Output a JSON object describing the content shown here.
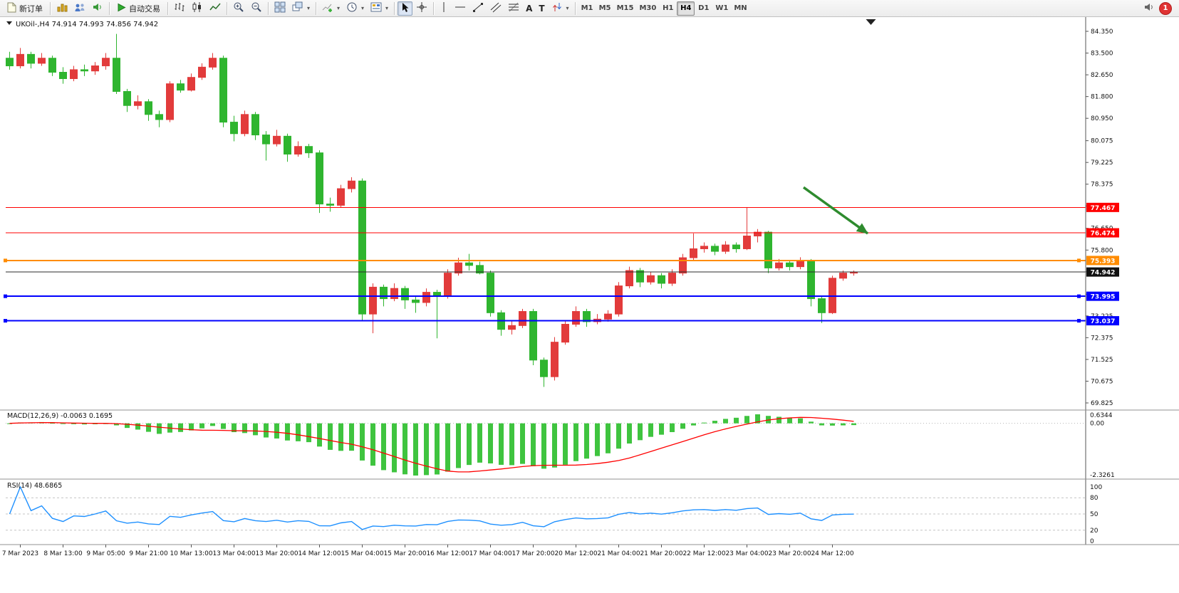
{
  "toolbar": {
    "new_order_label": "新订单",
    "autotrading_label": "自动交易",
    "timeframes": [
      "M1",
      "M5",
      "M15",
      "M30",
      "H1",
      "H4",
      "D1",
      "W1",
      "MN"
    ],
    "active_timeframe": "H4",
    "notification_badge": "1"
  },
  "icons": {
    "dropdown": "▾",
    "text_tool": "A",
    "label_tool": "T"
  },
  "chart": {
    "symbol": "UKOil-,H4",
    "ohlc": {
      "open": "74.914",
      "high": "74.993",
      "low": "74.856",
      "close": "74.942"
    },
    "price_ticks": [
      "84.350",
      "83.500",
      "82.650",
      "81.800",
      "80.950",
      "80.075",
      "79.225",
      "78.375",
      "77.525",
      "76.650",
      "75.800",
      "74.950",
      "74.075",
      "73.225",
      "72.375",
      "71.525",
      "70.675",
      "69.825"
    ],
    "hlines": [
      {
        "price": 77.467,
        "label": "77.467",
        "color": "#FF0000",
        "width": 1,
        "handles": false
      },
      {
        "price": 76.474,
        "label": "76.474",
        "color": "#FF0000",
        "width": 1,
        "handles": false
      },
      {
        "price": 75.393,
        "label": "75.393",
        "color": "#FF8C00",
        "width": 2,
        "handles": true
      },
      {
        "price": 73.995,
        "label": "73.995",
        "color": "#0000FF",
        "width": 2,
        "handles": true
      },
      {
        "price": 73.037,
        "label": "73.037",
        "color": "#0000FF",
        "width": 2,
        "handles": true
      }
    ],
    "current_price": {
      "value": 74.942,
      "label": "74.942",
      "line_color": "#2B2B2B",
      "tag_color": "#111111"
    },
    "arrow_annotation": {
      "color": "#2E8B2E",
      "start": {
        "bar": 74.3,
        "price": 78.25
      },
      "end": {
        "bar": 80.3,
        "price": 76.45
      }
    },
    "shift_marker_bar": 80.6
  },
  "chart_data": {
    "type": "candlestick",
    "title": "UKOil-,H4",
    "timeframe": "H4",
    "y_range": [
      69.825,
      84.35
    ],
    "bull_color": "#E23B3B",
    "bear_color": "#2FB52F",
    "x_labels": [
      "7 Mar 2023",
      "8 Mar 13:00",
      "9 Mar 05:00",
      "9 Mar 21:00",
      "10 Mar 13:00",
      "13 Mar 04:00",
      "13 Mar 20:00",
      "14 Mar 12:00",
      "15 Mar 04:00",
      "15 Mar 20:00",
      "16 Mar 12:00",
      "17 Mar 04:00",
      "17 Mar 20:00",
      "20 Mar 12:00",
      "21 Mar 04:00",
      "21 Mar 20:00",
      "22 Mar 12:00",
      "23 Mar 04:00",
      "23 Mar 20:00",
      "24 Mar 12:00"
    ],
    "x_label_indices": [
      1,
      5,
      9,
      13,
      17,
      21,
      25,
      29,
      33,
      37,
      41,
      45,
      49,
      53,
      57,
      61,
      65,
      69,
      73,
      77
    ],
    "candles": [
      [
        83.3,
        83.55,
        82.85,
        83.0
      ],
      [
        83.0,
        83.7,
        82.9,
        83.45
      ],
      [
        83.45,
        83.55,
        82.9,
        83.1
      ],
      [
        83.1,
        83.5,
        83.0,
        83.3
      ],
      [
        83.3,
        83.4,
        82.6,
        82.75
      ],
      [
        82.75,
        82.95,
        82.3,
        82.5
      ],
      [
        82.5,
        83.0,
        82.4,
        82.85
      ],
      [
        82.85,
        83.05,
        82.6,
        82.8
      ],
      [
        82.8,
        83.15,
        82.65,
        83.0
      ],
      [
        83.0,
        83.5,
        82.85,
        83.3
      ],
      [
        83.3,
        84.25,
        81.9,
        82.0
      ],
      [
        82.0,
        82.1,
        81.2,
        81.45
      ],
      [
        81.45,
        81.85,
        81.3,
        81.6
      ],
      [
        81.6,
        81.7,
        80.85,
        81.1
      ],
      [
        81.1,
        81.25,
        80.6,
        80.9
      ],
      [
        80.9,
        82.4,
        80.8,
        82.3
      ],
      [
        82.3,
        82.45,
        81.95,
        82.05
      ],
      [
        82.05,
        82.7,
        82.0,
        82.55
      ],
      [
        82.55,
        83.1,
        82.45,
        82.95
      ],
      [
        82.95,
        83.5,
        82.85,
        83.3
      ],
      [
        83.3,
        83.4,
        80.6,
        80.8
      ],
      [
        80.8,
        81.05,
        80.05,
        80.35
      ],
      [
        80.35,
        81.25,
        80.25,
        81.1
      ],
      [
        81.1,
        81.2,
        80.1,
        80.3
      ],
      [
        80.3,
        80.45,
        79.3,
        79.95
      ],
      [
        79.95,
        80.5,
        79.85,
        80.25
      ],
      [
        80.25,
        80.35,
        79.25,
        79.55
      ],
      [
        79.55,
        80.05,
        79.45,
        79.85
      ],
      [
        79.85,
        79.95,
        79.4,
        79.6
      ],
      [
        79.6,
        79.7,
        77.25,
        77.6
      ],
      [
        77.6,
        77.85,
        77.3,
        77.55
      ],
      [
        77.55,
        78.35,
        77.45,
        78.2
      ],
      [
        78.2,
        78.65,
        78.05,
        78.5
      ],
      [
        78.5,
        78.6,
        73.05,
        73.3
      ],
      [
        73.3,
        74.5,
        72.55,
        74.35
      ],
      [
        74.35,
        74.45,
        73.6,
        73.9
      ],
      [
        73.9,
        74.5,
        73.8,
        74.3
      ],
      [
        74.3,
        74.4,
        73.5,
        73.85
      ],
      [
        73.85,
        74.0,
        73.35,
        73.75
      ],
      [
        73.75,
        74.3,
        73.6,
        74.15
      ],
      [
        74.15,
        74.25,
        72.35,
        74.0
      ],
      [
        74.0,
        75.05,
        73.9,
        74.9
      ],
      [
        74.9,
        75.5,
        74.8,
        75.3
      ],
      [
        75.3,
        75.65,
        75.0,
        75.2
      ],
      [
        75.2,
        75.35,
        74.85,
        74.9
      ],
      [
        74.9,
        75.0,
        73.2,
        73.35
      ],
      [
        73.35,
        73.45,
        72.45,
        72.7
      ],
      [
        72.7,
        73.05,
        72.5,
        72.85
      ],
      [
        72.85,
        73.5,
        72.75,
        73.4
      ],
      [
        73.4,
        73.5,
        71.3,
        71.5
      ],
      [
        71.5,
        71.6,
        70.45,
        70.85
      ],
      [
        70.85,
        72.4,
        70.7,
        72.2
      ],
      [
        72.2,
        73.05,
        72.1,
        72.9
      ],
      [
        72.9,
        73.6,
        72.8,
        73.4
      ],
      [
        73.4,
        73.5,
        72.8,
        73.0
      ],
      [
        73.0,
        73.3,
        72.9,
        73.1
      ],
      [
        73.1,
        73.45,
        73.0,
        73.3
      ],
      [
        73.3,
        74.55,
        73.2,
        74.4
      ],
      [
        74.4,
        75.15,
        74.3,
        75.0
      ],
      [
        75.0,
        75.1,
        74.35,
        74.55
      ],
      [
        74.55,
        74.95,
        74.45,
        74.8
      ],
      [
        74.8,
        74.9,
        74.3,
        74.5
      ],
      [
        74.5,
        75.05,
        74.4,
        74.9
      ],
      [
        74.9,
        75.65,
        74.8,
        75.5
      ],
      [
        75.5,
        76.45,
        75.4,
        75.85
      ],
      [
        75.85,
        76.1,
        75.7,
        75.95
      ],
      [
        75.95,
        76.05,
        75.6,
        75.75
      ],
      [
        75.75,
        76.15,
        75.65,
        76.0
      ],
      [
        76.0,
        76.1,
        75.7,
        75.85
      ],
      [
        75.85,
        77.45,
        75.8,
        76.35
      ],
      [
        76.35,
        76.62,
        76.1,
        76.5
      ],
      [
        76.5,
        76.55,
        74.9,
        75.1
      ],
      [
        75.1,
        75.45,
        75.0,
        75.3
      ],
      [
        75.3,
        75.4,
        75.0,
        75.15
      ],
      [
        75.15,
        75.52,
        75.05,
        75.4
      ],
      [
        75.4,
        75.45,
        73.6,
        73.9
      ],
      [
        73.9,
        74.0,
        72.95,
        73.35
      ],
      [
        73.35,
        74.8,
        73.3,
        74.7
      ],
      [
        74.7,
        75.0,
        74.6,
        74.9
      ],
      [
        74.9,
        75.0,
        74.8,
        74.94
      ]
    ]
  },
  "macd_panel": {
    "label": "MACD(12,26,9) -0.0063 0.1695",
    "axis_labels": [
      "0.6344",
      "0.00",
      "-2.3261"
    ],
    "histogram_color": "#3FC43F",
    "signal_color": "#FF0000"
  },
  "rsi_panel": {
    "label": "RSI(14) 48.6865",
    "axis_labels": [
      "100",
      "80",
      "50",
      "20",
      "0"
    ],
    "levels": [
      80,
      50,
      20
    ],
    "line_color": "#1E90FF",
    "value": "48.6865"
  }
}
